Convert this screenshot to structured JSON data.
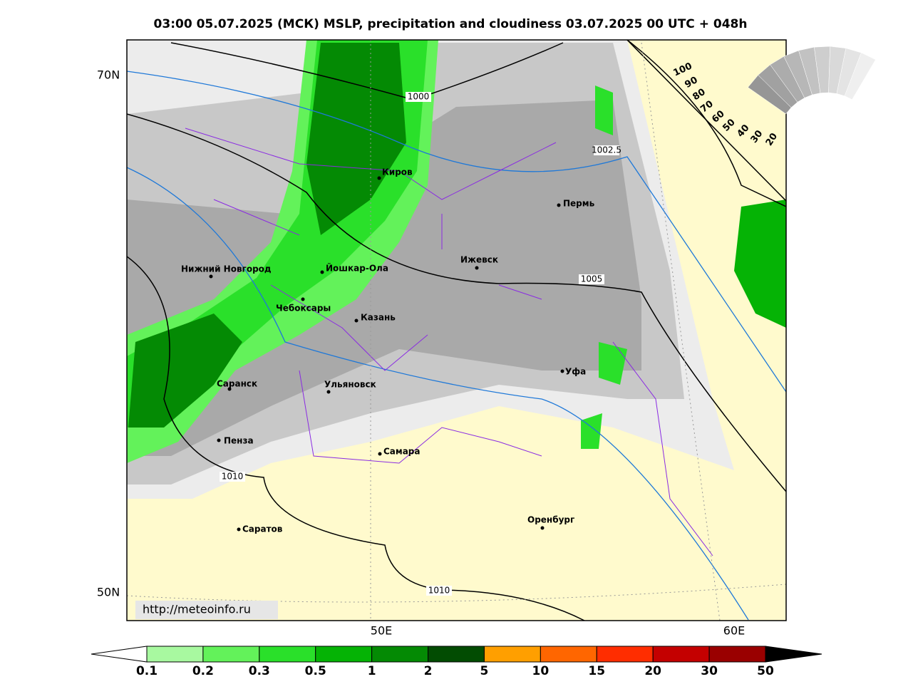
{
  "title": "03:00 05.07.2025 (МСК) MSLP, precipitation and cloudiness 03.07.2025 00 UTC + 048h",
  "map": {
    "lat_labels": [
      "70N",
      "50N"
    ],
    "lon_labels": [
      "50E",
      "60E"
    ],
    "url": "http://meteoinfo.ru",
    "cities": [
      "Киров",
      "Пермь",
      "Нижний Новгород",
      "Йошкар-Ола",
      "Ижевск",
      "Чебоксары",
      "Казань",
      "Уфа",
      "Саранск",
      "Ульяновск",
      "Пенза",
      "Самара",
      "Оренбург",
      "Саратов"
    ],
    "isobar_labels": [
      1000,
      1002.5,
      1005,
      1010,
      1010
    ]
  },
  "cloud_scale": {
    "labels": [
      100,
      90,
      80,
      70,
      60,
      50,
      40,
      30,
      20
    ]
  },
  "colorbar": {
    "labels": [
      0.1,
      0.2,
      0.3,
      0.5,
      1,
      2,
      5,
      10,
      15,
      20,
      30,
      50
    ],
    "last_label": 50,
    "colors": [
      "#a8f9a0",
      "#63f25a",
      "#2ae02a",
      "#05b305",
      "#048a04",
      "#024c02",
      "#ff9f00",
      "#ff6600",
      "#ff2d00",
      "#c40000",
      "#9a0000"
    ]
  }
}
